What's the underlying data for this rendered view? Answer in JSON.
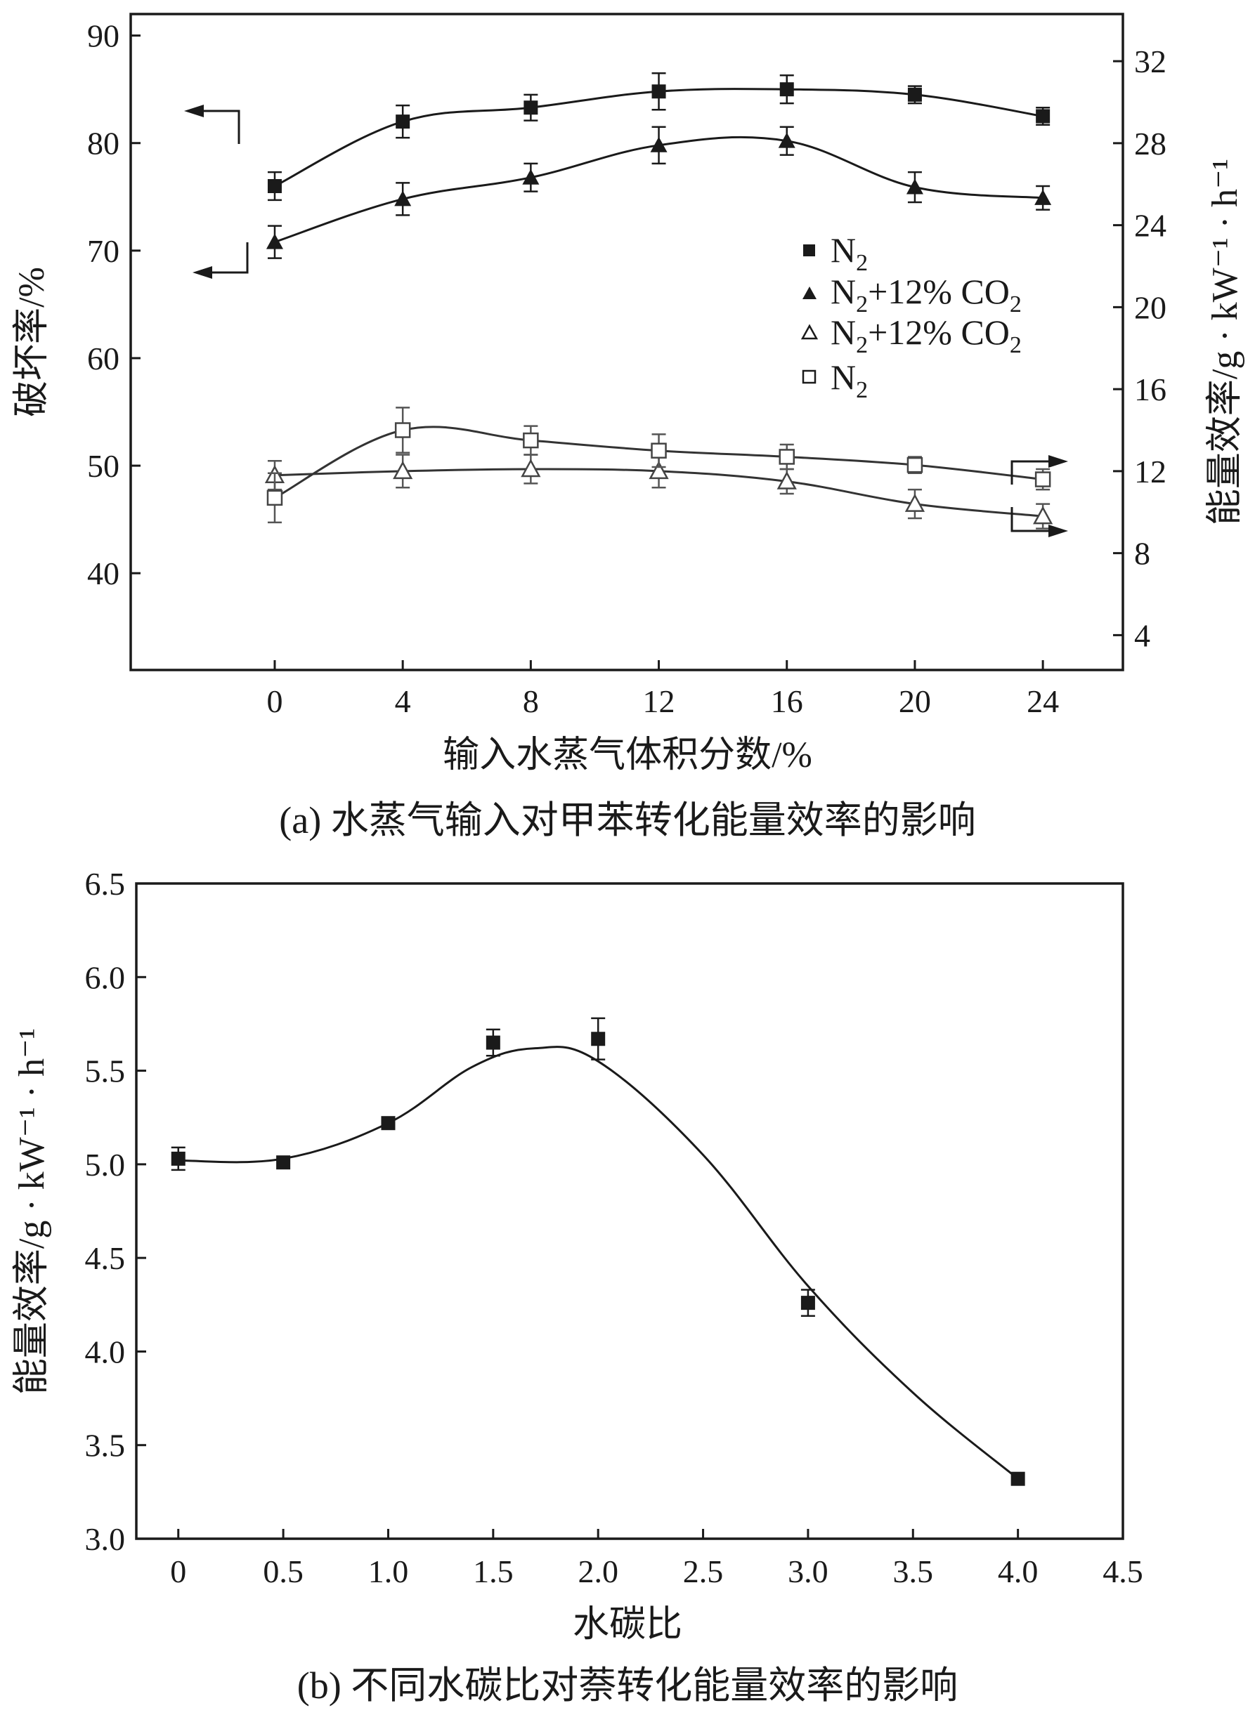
{
  "chart_data": [
    {
      "id": "a",
      "type": "line",
      "caption": "(a) 水蒸气输入对甲苯转化能量效率的影响",
      "xlabel": "输入水蒸气体积分数/%",
      "ylabel_left": "破坏率/%",
      "ylabel_right": "能量效率/g · kW⁻¹ · h⁻¹",
      "xlim": [
        -4.5,
        26.5
      ],
      "ylim_left": [
        31,
        92
      ],
      "ylim_right": [
        2.3,
        34.3
      ],
      "x_ticks": [
        0,
        4,
        8,
        12,
        16,
        20,
        24
      ],
      "y_ticks_left": [
        40,
        50,
        60,
        70,
        80,
        90
      ],
      "y_ticks_right": [
        4,
        8,
        12,
        16,
        20,
        24,
        28,
        32
      ],
      "x": [
        0,
        4,
        8,
        12,
        16,
        20,
        24
      ],
      "series": [
        {
          "name": "N2",
          "legend": "N",
          "legend_sub": "2",
          "marker": "filled-square",
          "axis": "left",
          "values": [
            76.0,
            82.0,
            83.3,
            84.8,
            85.0,
            84.5,
            82.5
          ],
          "errors": [
            1.3,
            1.5,
            1.2,
            1.7,
            1.3,
            0.8,
            0.8
          ]
        },
        {
          "name": "N2+12% CO2",
          "legend": "N",
          "legend_sub": "2",
          "legend_rest": "+12% CO",
          "legend_sub2": "2",
          "marker": "filled-triangle",
          "axis": "left",
          "values": [
            70.8,
            74.8,
            76.8,
            79.8,
            80.2,
            75.9,
            74.9
          ],
          "errors": [
            1.5,
            1.5,
            1.3,
            1.7,
            1.3,
            1.4,
            1.1
          ]
        },
        {
          "name": "N2+12% CO2",
          "legend": "N",
          "legend_sub": "2",
          "legend_rest": "+12% CO",
          "legend_sub2": "2",
          "marker": "open-triangle",
          "axis": "right",
          "values": [
            11.8,
            12.0,
            12.1,
            12.0,
            11.5,
            10.4,
            9.8
          ],
          "errors": [
            0.7,
            0.8,
            0.7,
            0.8,
            0.6,
            0.7,
            0.6
          ]
        },
        {
          "name": "N2",
          "legend": "N",
          "legend_sub": "2",
          "marker": "open-square",
          "axis": "right",
          "values": [
            10.7,
            14.0,
            13.5,
            13.0,
            12.7,
            12.3,
            11.6
          ],
          "errors": [
            1.2,
            1.1,
            0.7,
            0.8,
            0.6,
            0.4,
            0.5
          ]
        }
      ]
    },
    {
      "id": "b",
      "type": "line",
      "caption": "(b) 不同水碳比对萘转化能量效率的影响",
      "xlabel": "水碳比",
      "ylabel": "能量效率/g · kW⁻¹ · h⁻¹",
      "xlim": [
        -0.2,
        4.5
      ],
      "ylim": [
        3.0,
        6.5
      ],
      "x_ticks": [
        "0",
        "0.5",
        "1.0",
        "1.5",
        "2.0",
        "2.5",
        "3.0",
        "3.5",
        "4.0",
        "4.5"
      ],
      "x_tick_values": [
        0,
        0.5,
        1.0,
        1.5,
        2.0,
        2.5,
        3.0,
        3.5,
        4.0,
        4.5
      ],
      "y_ticks": [
        "3.0",
        "3.5",
        "4.0",
        "4.5",
        "5.0",
        "5.5",
        "6.0",
        "6.5"
      ],
      "y_tick_values": [
        3.0,
        3.5,
        4.0,
        4.5,
        5.0,
        5.5,
        6.0,
        6.5
      ],
      "series": [
        {
          "name": "能量效率",
          "marker": "filled-square",
          "x": [
            0,
            0.5,
            1.0,
            1.5,
            2.0,
            3.0,
            4.0
          ],
          "values": [
            5.03,
            5.01,
            5.22,
            5.65,
            5.67,
            4.26,
            3.32
          ],
          "errors": [
            0.06,
            0.0,
            0.0,
            0.07,
            0.11,
            0.07,
            0.0
          ]
        }
      ]
    }
  ]
}
